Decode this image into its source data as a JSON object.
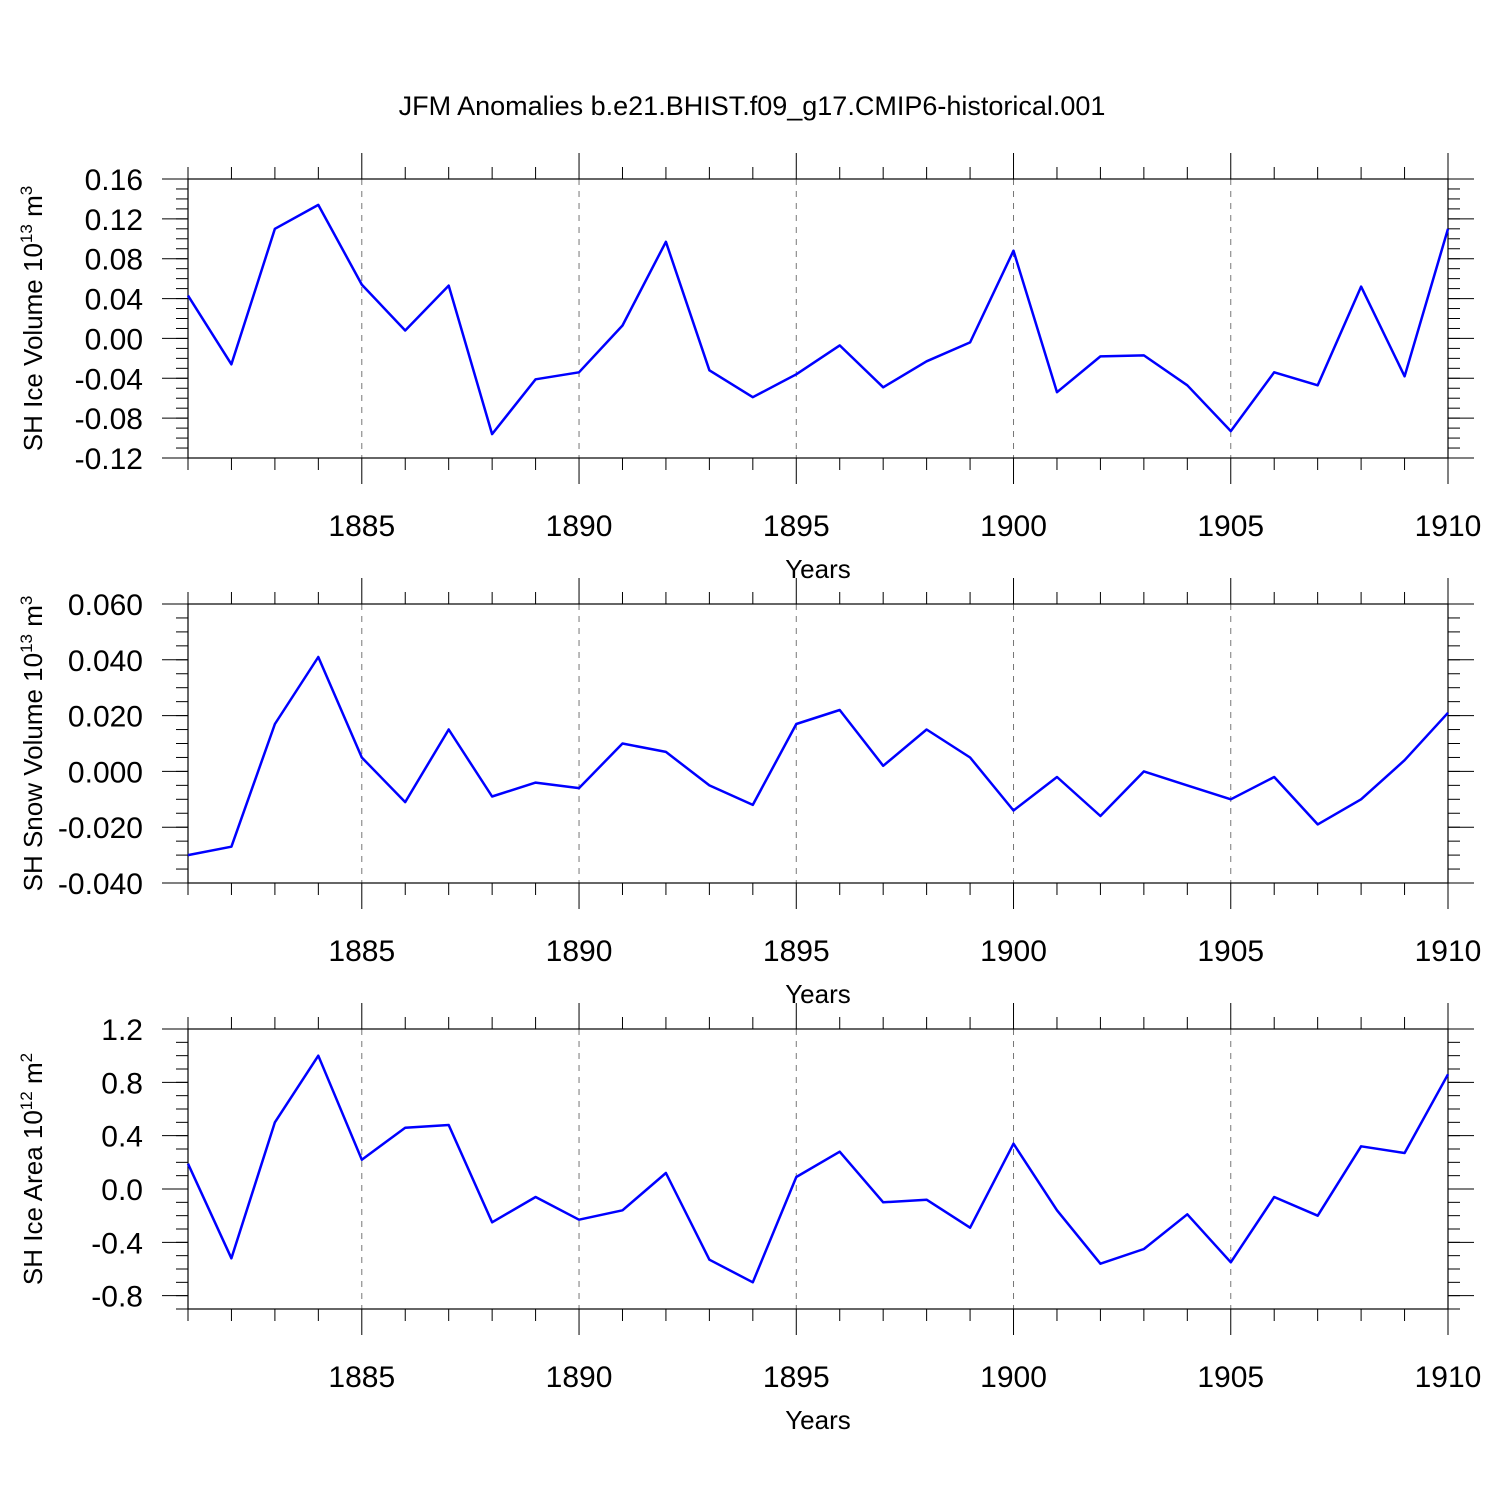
{
  "title": "JFM Anomalies b.e21.BHIST.f09_g17.CMIP6-historical.001",
  "colors": {
    "line": "#0000ff",
    "frame": "#000000",
    "grid": "#777777"
  },
  "chart_data": [
    {
      "type": "line",
      "id": "ice-volume",
      "ylabel_prefix": "SH Ice Volume 10",
      "ylabel_exp": "13",
      "ylabel_unit": " m",
      "ylabel_unit_exp": "3",
      "xlabel": "Years",
      "xlim": [
        1881,
        1910
      ],
      "ylim": [
        -0.12,
        0.16
      ],
      "yticks": [
        -0.12,
        -0.08,
        -0.04,
        0.0,
        0.04,
        0.08,
        0.12,
        0.16
      ],
      "ytick_labels": [
        "-0.12",
        "-0.08",
        "-0.04",
        "0.00",
        "0.04",
        "0.08",
        "0.12",
        "0.16"
      ],
      "yminor_step": 0.01,
      "xticks": [
        1885,
        1890,
        1895,
        1900,
        1905,
        1910
      ],
      "xtick_labels": [
        "1885",
        "1890",
        "1895",
        "1900",
        "1905",
        "1910"
      ],
      "grid_x": [
        1885,
        1890,
        1895,
        1900,
        1905
      ],
      "x": [
        1881,
        1882,
        1883,
        1884,
        1885,
        1886,
        1887,
        1888,
        1889,
        1890,
        1891,
        1892,
        1893,
        1894,
        1895,
        1896,
        1897,
        1898,
        1899,
        1900,
        1901,
        1902,
        1903,
        1904,
        1905,
        1906,
        1907,
        1908,
        1909,
        1910
      ],
      "values": [
        0.043,
        -0.026,
        0.11,
        0.134,
        0.054,
        0.008,
        0.053,
        -0.096,
        -0.041,
        -0.034,
        0.013,
        0.097,
        -0.032,
        -0.059,
        -0.036,
        -0.007,
        -0.049,
        -0.023,
        -0.004,
        0.088,
        -0.054,
        -0.018,
        -0.017,
        -0.047,
        -0.093,
        -0.034,
        -0.047,
        0.052,
        -0.038,
        0.11
      ]
    },
    {
      "type": "line",
      "id": "snow-volume",
      "ylabel_prefix": "SH Snow Volume 10",
      "ylabel_exp": "13",
      "ylabel_unit": " m",
      "ylabel_unit_exp": "3",
      "xlabel": "Years",
      "xlim": [
        1881,
        1910
      ],
      "ylim": [
        -0.04,
        0.06
      ],
      "yticks": [
        -0.04,
        -0.02,
        0.0,
        0.02,
        0.04,
        0.06
      ],
      "ytick_labels": [
        "-0.040",
        "-0.020",
        "0.000",
        "0.020",
        "0.040",
        "0.060"
      ],
      "yminor_step": 0.005,
      "xticks": [
        1885,
        1890,
        1895,
        1900,
        1905,
        1910
      ],
      "xtick_labels": [
        "1885",
        "1890",
        "1895",
        "1900",
        "1905",
        "1910"
      ],
      "grid_x": [
        1885,
        1890,
        1895,
        1900,
        1905
      ],
      "x": [
        1881,
        1882,
        1883,
        1884,
        1885,
        1886,
        1887,
        1888,
        1889,
        1890,
        1891,
        1892,
        1893,
        1894,
        1895,
        1896,
        1897,
        1898,
        1899,
        1900,
        1901,
        1902,
        1903,
        1904,
        1905,
        1906,
        1907,
        1908,
        1909,
        1910
      ],
      "values": [
        -0.03,
        -0.027,
        0.017,
        0.041,
        0.005,
        -0.011,
        0.015,
        -0.009,
        -0.004,
        -0.006,
        0.01,
        0.007,
        -0.005,
        -0.012,
        0.017,
        0.022,
        0.002,
        0.015,
        0.005,
        -0.014,
        -0.002,
        -0.016,
        0.0,
        -0.005,
        -0.01,
        -0.002,
        -0.019,
        -0.01,
        0.004,
        0.021
      ]
    },
    {
      "type": "line",
      "id": "ice-area",
      "ylabel_prefix": "SH Ice Area 10",
      "ylabel_exp": "12",
      "ylabel_unit": " m",
      "ylabel_unit_exp": "2",
      "xlabel": "Years",
      "xlim": [
        1881,
        1910
      ],
      "ylim": [
        -0.9,
        1.2
      ],
      "yticks": [
        -0.8,
        -0.4,
        0.0,
        0.4,
        0.8,
        1.2
      ],
      "ytick_labels": [
        "-0.8",
        "-0.4",
        "0.0",
        "0.4",
        "0.8",
        "1.2"
      ],
      "yminor_step": 0.1,
      "xticks": [
        1885,
        1890,
        1895,
        1900,
        1905,
        1910
      ],
      "xtick_labels": [
        "1885",
        "1890",
        "1895",
        "1900",
        "1905",
        "1910"
      ],
      "grid_x": [
        1885,
        1890,
        1895,
        1900,
        1905
      ],
      "x": [
        1881,
        1882,
        1883,
        1884,
        1885,
        1886,
        1887,
        1888,
        1889,
        1890,
        1891,
        1892,
        1893,
        1894,
        1895,
        1896,
        1897,
        1898,
        1899,
        1900,
        1901,
        1902,
        1903,
        1904,
        1905,
        1906,
        1907,
        1908,
        1909,
        1910
      ],
      "values": [
        0.19,
        -0.52,
        0.5,
        1.0,
        0.22,
        0.46,
        0.48,
        -0.25,
        -0.06,
        -0.23,
        -0.16,
        0.12,
        -0.53,
        -0.7,
        0.09,
        0.28,
        -0.1,
        -0.08,
        -0.29,
        0.34,
        -0.16,
        -0.56,
        -0.45,
        -0.19,
        -0.55,
        -0.06,
        -0.2,
        0.32,
        0.27,
        0.86
      ]
    }
  ]
}
